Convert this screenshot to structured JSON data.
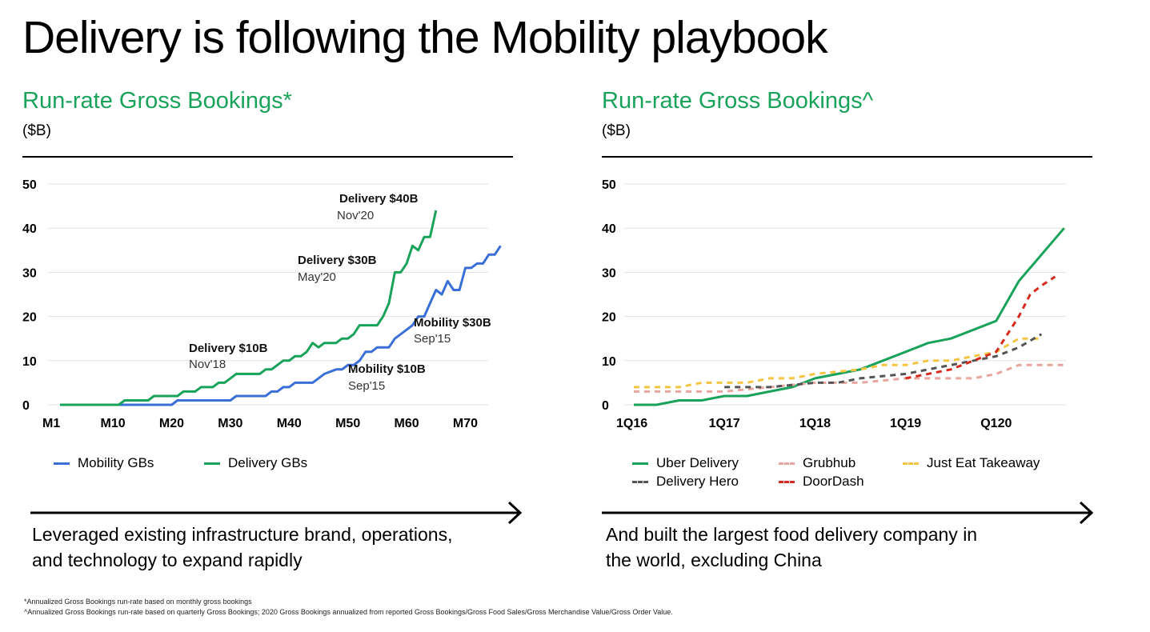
{
  "slide": {
    "title": "Delivery is following the Mobility playbook",
    "footnotes": [
      "*Annualized Gross Bookings run-rate based on monthly gross bookings",
      "^Annualized Gross Bookings run-rate based on quarterly Gross Bookings; 2020 Gross Bookings annualized from reported Gross Bookings/Gross Food Sales/Gross Merchandise Value/Gross Order Value."
    ]
  },
  "left_panel": {
    "title": "Run-rate Gross Bookings*",
    "unit": "($B)",
    "caption": [
      "Leveraged existing infrastructure brand, operations,",
      "and technology  to expand rapidly"
    ]
  },
  "right_panel": {
    "title": "Run-rate Gross Bookings^",
    "unit": "($B)",
    "caption": [
      "And built the largest food delivery company in",
      "the world, excluding China"
    ]
  },
  "chart_data": [
    {
      "type": "line",
      "title": "Run-rate Gross Bookings*",
      "ylabel": "($B)",
      "xlabel": "",
      "ylim": [
        0,
        50
      ],
      "xlim": [
        1,
        73
      ],
      "y_ticks": [
        "0",
        "10",
        "20",
        "30",
        "40",
        "50"
      ],
      "x_ticks": [
        {
          "label": "M1",
          "x": 1
        },
        {
          "label": "M10",
          "x": 10
        },
        {
          "label": "M20",
          "x": 20
        },
        {
          "label": "M30",
          "x": 30
        },
        {
          "label": "M40",
          "x": 40
        },
        {
          "label": "M50",
          "x": 50
        },
        {
          "label": "M60",
          "x": 60
        },
        {
          "label": "M70",
          "x": 70
        }
      ],
      "grid": true,
      "legend": "bottom",
      "series": [
        {
          "name": "Mobility GBs",
          "color": "#3a6fd8",
          "style": "solid",
          "points": [
            [
              1,
              0
            ],
            [
              20,
              0
            ],
            [
              21,
              1
            ],
            [
              26,
              1
            ],
            [
              30,
              1
            ],
            [
              31,
              2
            ],
            [
              36,
              2
            ],
            [
              37,
              3
            ],
            [
              38,
              3
            ],
            [
              39,
              4
            ],
            [
              40,
              4
            ],
            [
              41,
              5
            ],
            [
              44,
              5
            ],
            [
              45,
              6
            ],
            [
              46,
              7
            ],
            [
              48,
              8
            ],
            [
              49,
              8
            ],
            [
              50,
              9
            ],
            [
              51,
              9
            ],
            [
              52,
              10
            ],
            [
              53,
              12
            ],
            [
              54,
              12
            ],
            [
              55,
              13
            ],
            [
              56,
              13
            ],
            [
              57,
              13
            ],
            [
              58,
              15
            ],
            [
              60,
              17
            ],
            [
              61,
              18
            ],
            [
              62,
              20
            ],
            [
              63,
              20
            ],
            [
              64,
              23
            ],
            [
              65,
              26
            ],
            [
              66,
              25
            ],
            [
              67,
              28
            ],
            [
              68,
              26
            ],
            [
              69,
              26
            ],
            [
              70,
              31
            ],
            [
              71,
              31
            ],
            [
              72,
              32
            ],
            [
              73,
              32
            ],
            [
              74,
              34
            ],
            [
              75,
              34
            ],
            [
              76,
              36
            ]
          ]
        },
        {
          "name": "Delivery GBs",
          "color": "#19a35a",
          "style": "solid",
          "points": [
            [
              1,
              0
            ],
            [
              11,
              0
            ],
            [
              12,
              1
            ],
            [
              16,
              1
            ],
            [
              17,
              2
            ],
            [
              21,
              2
            ],
            [
              22,
              3
            ],
            [
              24,
              3
            ],
            [
              25,
              4
            ],
            [
              27,
              4
            ],
            [
              28,
              5
            ],
            [
              29,
              5
            ],
            [
              30,
              6
            ],
            [
              31,
              7
            ],
            [
              35,
              7
            ],
            [
              36,
              8
            ],
            [
              37,
              8
            ],
            [
              38,
              9
            ],
            [
              39,
              10
            ],
            [
              40,
              10
            ],
            [
              41,
              11
            ],
            [
              42,
              11
            ],
            [
              43,
              12
            ],
            [
              44,
              14
            ],
            [
              45,
              13
            ],
            [
              46,
              14
            ],
            [
              48,
              14
            ],
            [
              49,
              15
            ],
            [
              50,
              15
            ],
            [
              51,
              16
            ],
            [
              52,
              18
            ],
            [
              55,
              18
            ],
            [
              56,
              20
            ],
            [
              57,
              23
            ],
            [
              58,
              30
            ],
            [
              59,
              30
            ],
            [
              60,
              32
            ],
            [
              61,
              36
            ],
            [
              62,
              35
            ],
            [
              63,
              38
            ],
            [
              64,
              38
            ],
            [
              65,
              44
            ]
          ]
        }
      ],
      "annotations": [
        {
          "bold": "Delivery $40B",
          "note": "Nov'20"
        },
        {
          "bold": "Delivery $30B",
          "note": "May'20"
        },
        {
          "bold": "Mobility $30B",
          "note": "Sep'15"
        },
        {
          "bold": "Delivery $10B",
          "note": "Nov'18"
        },
        {
          "bold": "Mobility $10B",
          "note": "Sep'15"
        }
      ]
    },
    {
      "type": "line",
      "title": "Run-rate Gross Bookings^",
      "ylabel": "($B)",
      "xlabel": "",
      "ylim": [
        0,
        50
      ],
      "y_ticks": [
        "0",
        "10",
        "20",
        "30",
        "40",
        "50"
      ],
      "x_ticks": [
        {
          "label": "1Q16",
          "x": 0
        },
        {
          "label": "1Q17",
          "x": 4
        },
        {
          "label": "1Q18",
          "x": 8
        },
        {
          "label": "1Q19",
          "x": 12
        },
        {
          "label": "Q120",
          "x": 16
        }
      ],
      "grid": true,
      "legend": "bottom",
      "series": [
        {
          "name": "Uber Delivery",
          "color": "#19a35a",
          "style": "solid",
          "points": [
            [
              0,
              0
            ],
            [
              1,
              0
            ],
            [
              2,
              1
            ],
            [
              3,
              1
            ],
            [
              4,
              2
            ],
            [
              5,
              2
            ],
            [
              6,
              3
            ],
            [
              7,
              4
            ],
            [
              8,
              6
            ],
            [
              9,
              7
            ],
            [
              10,
              8
            ],
            [
              11,
              10
            ],
            [
              12,
              12
            ],
            [
              13,
              14
            ],
            [
              14,
              15
            ],
            [
              15,
              17
            ],
            [
              16,
              19
            ],
            [
              17,
              28
            ],
            [
              18,
              34
            ],
            [
              19,
              40
            ]
          ]
        },
        {
          "name": "Grubhub",
          "color": "#e8a6a0",
          "style": "dash",
          "points": [
            [
              0,
              3
            ],
            [
              4,
              3
            ],
            [
              8,
              5
            ],
            [
              10,
              5
            ],
            [
              12,
              6
            ],
            [
              15,
              6
            ],
            [
              16,
              7
            ],
            [
              17,
              9
            ],
            [
              19,
              9
            ]
          ]
        },
        {
          "name": "Just Eat Takeaway",
          "color": "#f5c542",
          "style": "dash",
          "points": [
            [
              0,
              4
            ],
            [
              2,
              4
            ],
            [
              3,
              5
            ],
            [
              5,
              5
            ],
            [
              6,
              6
            ],
            [
              7,
              6
            ],
            [
              8,
              7
            ],
            [
              10,
              8
            ],
            [
              11,
              9
            ],
            [
              12,
              9
            ],
            [
              13,
              10
            ],
            [
              14,
              10
            ],
            [
              15,
              11
            ],
            [
              16,
              12
            ],
            [
              17,
              15
            ],
            [
              18,
              15
            ]
          ]
        },
        {
          "name": "Delivery Hero",
          "color": "#555555",
          "style": "dash",
          "points": [
            [
              4,
              4
            ],
            [
              6,
              4
            ],
            [
              8,
              5
            ],
            [
              9,
              5
            ],
            [
              10,
              6
            ],
            [
              12,
              7
            ],
            [
              13,
              8
            ],
            [
              14,
              9
            ],
            [
              15,
              10
            ],
            [
              16,
              11
            ],
            [
              17,
              13
            ],
            [
              18,
              16
            ]
          ]
        },
        {
          "name": "DoorDash",
          "color": "#d62a1e",
          "style": "dash",
          "points": [
            [
              12,
              6
            ],
            [
              13,
              7
            ],
            [
              14,
              8
            ],
            [
              15,
              10
            ],
            [
              16,
              12
            ],
            [
              17,
              20
            ],
            [
              17.5,
              25
            ],
            [
              18,
              27
            ],
            [
              18.6,
              29
            ]
          ]
        }
      ]
    }
  ]
}
